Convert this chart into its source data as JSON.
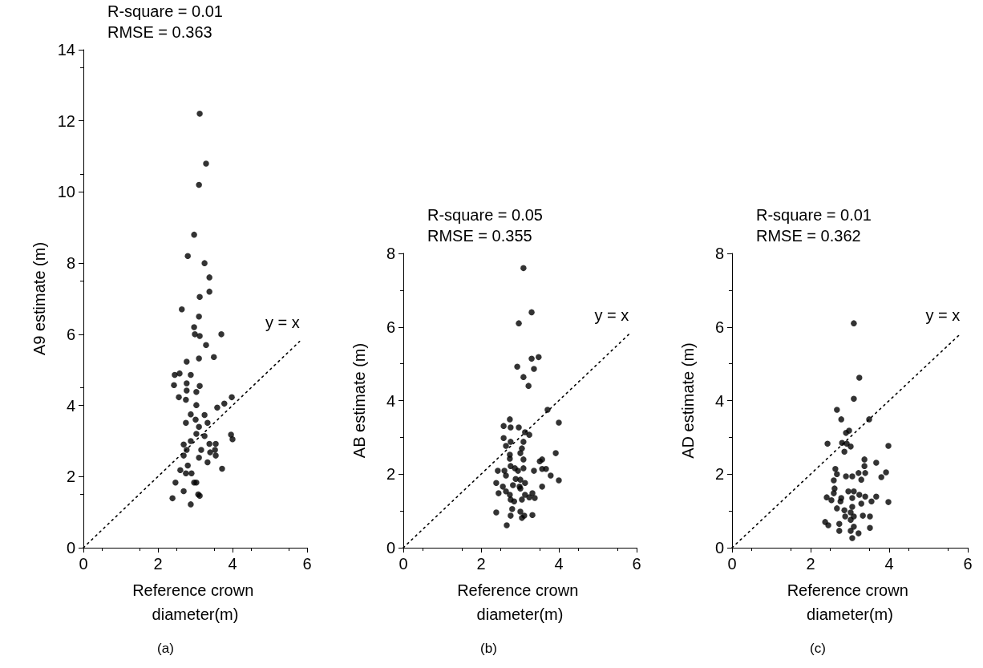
{
  "chart_data": [
    {
      "type": "scatter",
      "title": "(a)",
      "xlabel": "Reference crown diameter(m)",
      "ylabel": "A9 estimate (m)",
      "xlim": [
        0,
        6
      ],
      "xticks": [
        0,
        2,
        4,
        6
      ],
      "ylim": [
        0,
        14
      ],
      "yticks": [
        0,
        2,
        4,
        6,
        8,
        10,
        12,
        14
      ],
      "grid": false,
      "annotations": [
        "R-square = 0.01",
        "RMSE = 0.363",
        "y = x"
      ],
      "series": [
        {
          "color": "#000000",
          "marker": "circle",
          "x": [
            3.12,
            3.29,
            3.1,
            2.97,
            2.8,
            3.25,
            3.38,
            3.38,
            3.12,
            2.64,
            3.1,
            2.97,
            2.99,
            3.12,
            3.7,
            3.29,
            2.77,
            3.1,
            3.5,
            2.45,
            2.58,
            2.88,
            2.43,
            2.77,
            2.77,
            3.12,
            3.03,
            2.56,
            2.75,
            3.03,
            3.98,
            3.78,
            3.59,
            2.88,
            3.25,
            2.75,
            3.01,
            3.33,
            3.1,
            3.03,
            3.25,
            3.96,
            4.0,
            2.88,
            2.69,
            2.77,
            2.69,
            3.16,
            3.38,
            3.55,
            3.53,
            3.4,
            3.55,
            3.1,
            3.33,
            3.72,
            2.8,
            2.6,
            2.75,
            2.9,
            2.47,
            2.97,
            3.03,
            2.69,
            3.08,
            3.12,
            2.39,
            2.88
          ],
          "values": [
            12.2,
            10.8,
            10.2,
            8.8,
            8.2,
            8.0,
            7.6,
            7.2,
            7.05,
            6.7,
            6.5,
            6.2,
            6.0,
            5.95,
            6.0,
            5.7,
            5.23,
            5.32,
            5.36,
            4.86,
            4.9,
            4.86,
            4.57,
            4.62,
            4.42,
            4.55,
            4.38,
            4.23,
            4.16,
            4.01,
            4.23,
            4.05,
            3.94,
            3.75,
            3.73,
            3.51,
            3.6,
            3.51,
            3.4,
            3.2,
            3.14,
            3.18,
            3.05,
            3.0,
            2.9,
            2.75,
            2.59,
            2.75,
            2.92,
            2.92,
            2.75,
            2.68,
            2.59,
            2.53,
            2.4,
            2.22,
            2.31,
            2.18,
            2.09,
            2.09,
            1.83,
            1.83,
            1.83,
            1.59,
            1.5,
            1.46,
            1.39,
            1.22
          ]
        },
        {
          "type": "line",
          "color": "#000000",
          "marker": "none",
          "line_style": "dotted",
          "x": [
            0,
            5.8
          ],
          "values": [
            0,
            5.8
          ]
        }
      ]
    },
    {
      "type": "scatter",
      "title": "(b)",
      "xlabel": "Reference crown diameter(m)",
      "ylabel": "AB estimate (m)",
      "xlim": [
        0,
        6
      ],
      "xticks": [
        0,
        2,
        4,
        6
      ],
      "ylim": [
        0,
        8
      ],
      "yticks": [
        0,
        2,
        4,
        6,
        8
      ],
      "grid": false,
      "annotations": [
        "R-square = 0.05",
        "RMSE = 0.355",
        "y = x"
      ],
      "series": [
        {
          "color": "#000000",
          "marker": "circle",
          "x": [
            3.09,
            3.3,
            2.97,
            3.3,
            3.48,
            2.93,
            3.36,
            3.09,
            3.22,
            3.71,
            4.0,
            2.74,
            2.58,
            2.76,
            2.97,
            3.13,
            3.24,
            2.58,
            2.76,
            2.64,
            3.09,
            3.05,
            3.01,
            2.74,
            2.74,
            3.09,
            3.92,
            3.57,
            3.51,
            2.76,
            2.87,
            3.09,
            2.95,
            2.43,
            2.6,
            2.64,
            3.36,
            3.57,
            3.67,
            3.79,
            4.0,
            2.89,
            3.01,
            2.39,
            3.13,
            2.82,
            2.99,
            2.56,
            3.57,
            2.45,
            2.64,
            2.74,
            3.01,
            3.13,
            3.32,
            3.24,
            3.38,
            2.76,
            2.85,
            3.05,
            2.39,
            2.8,
            2.76,
            3.01,
            3.11,
            3.05,
            3.32,
            2.66
          ],
          "values": [
            7.6,
            6.4,
            6.1,
            5.14,
            5.18,
            4.92,
            4.86,
            4.64,
            4.4,
            3.75,
            3.4,
            3.49,
            3.31,
            3.27,
            3.27,
            3.14,
            3.07,
            2.98,
            2.88,
            2.77,
            2.88,
            2.7,
            2.57,
            2.53,
            2.42,
            2.4,
            2.57,
            2.4,
            2.35,
            2.22,
            2.16,
            2.16,
            2.09,
            2.09,
            2.09,
            1.96,
            2.09,
            2.14,
            2.14,
            1.96,
            1.83,
            1.87,
            1.85,
            1.76,
            1.76,
            1.7,
            1.66,
            1.66,
            1.66,
            1.48,
            1.53,
            1.44,
            1.61,
            1.44,
            1.48,
            1.37,
            1.35,
            1.31,
            1.26,
            1.31,
            0.96,
            1.05,
            0.87,
            0.98,
            0.87,
            0.81,
            0.89,
            0.61
          ]
        },
        {
          "type": "line",
          "color": "#000000",
          "marker": "none",
          "line_style": "dotted",
          "x": [
            0,
            5.8
          ],
          "values": [
            0,
            5.8
          ]
        }
      ]
    },
    {
      "type": "scatter",
      "title": "(c)",
      "xlabel": "Reference crown diameter(m)",
      "ylabel": "AD estimate (m)",
      "xlim": [
        0,
        6
      ],
      "xticks": [
        0,
        2,
        4,
        6
      ],
      "ylim": [
        0,
        8
      ],
      "yticks": [
        0,
        2,
        4,
        6,
        8
      ],
      "grid": false,
      "annotations": [
        "R-square = 0.01",
        "RMSE = 0.362",
        "y = x"
      ],
      "series": [
        {
          "color": "#000000",
          "marker": "circle",
          "x": [
            3.1,
            3.24,
            3.1,
            2.67,
            2.78,
            3.49,
            2.98,
            2.9,
            2.43,
            2.8,
            2.92,
            3.02,
            2.86,
            3.98,
            3.37,
            3.37,
            3.67,
            2.63,
            2.67,
            2.9,
            3.06,
            3.22,
            3.39,
            3.29,
            3.92,
            3.8,
            2.59,
            2.61,
            2.96,
            3.1,
            2.59,
            2.41,
            2.78,
            2.53,
            2.76,
            3.06,
            3.24,
            3.39,
            3.67,
            3.55,
            3.98,
            3.29,
            2.67,
            2.86,
            3.06,
            3.02,
            2.88,
            3.1,
            3.33,
            3.51,
            3.02,
            2.37,
            2.45,
            2.73,
            2.73,
            3.1,
            3.51,
            3.02,
            3.22,
            3.06
          ],
          "values": [
            6.1,
            4.62,
            4.05,
            3.75,
            3.49,
            3.49,
            3.18,
            3.12,
            2.83,
            2.85,
            2.83,
            2.75,
            2.61,
            2.77,
            2.4,
            2.22,
            2.31,
            2.14,
            2.0,
            1.94,
            1.94,
            2.03,
            2.03,
            1.85,
            2.05,
            1.92,
            1.83,
            1.61,
            1.53,
            1.53,
            1.48,
            1.37,
            1.35,
            1.29,
            1.26,
            1.35,
            1.44,
            1.39,
            1.39,
            1.26,
            1.24,
            1.2,
            1.07,
            1.02,
            1.11,
            0.96,
            0.85,
            0.85,
            0.87,
            0.85,
            0.76,
            0.7,
            0.61,
            0.65,
            0.46,
            0.57,
            0.54,
            0.46,
            0.39,
            0.26
          ]
        },
        {
          "type": "line",
          "color": "#000000",
          "marker": "none",
          "line_style": "dotted",
          "x": [
            0,
            5.8
          ],
          "values": [
            0,
            5.8
          ]
        }
      ]
    }
  ]
}
